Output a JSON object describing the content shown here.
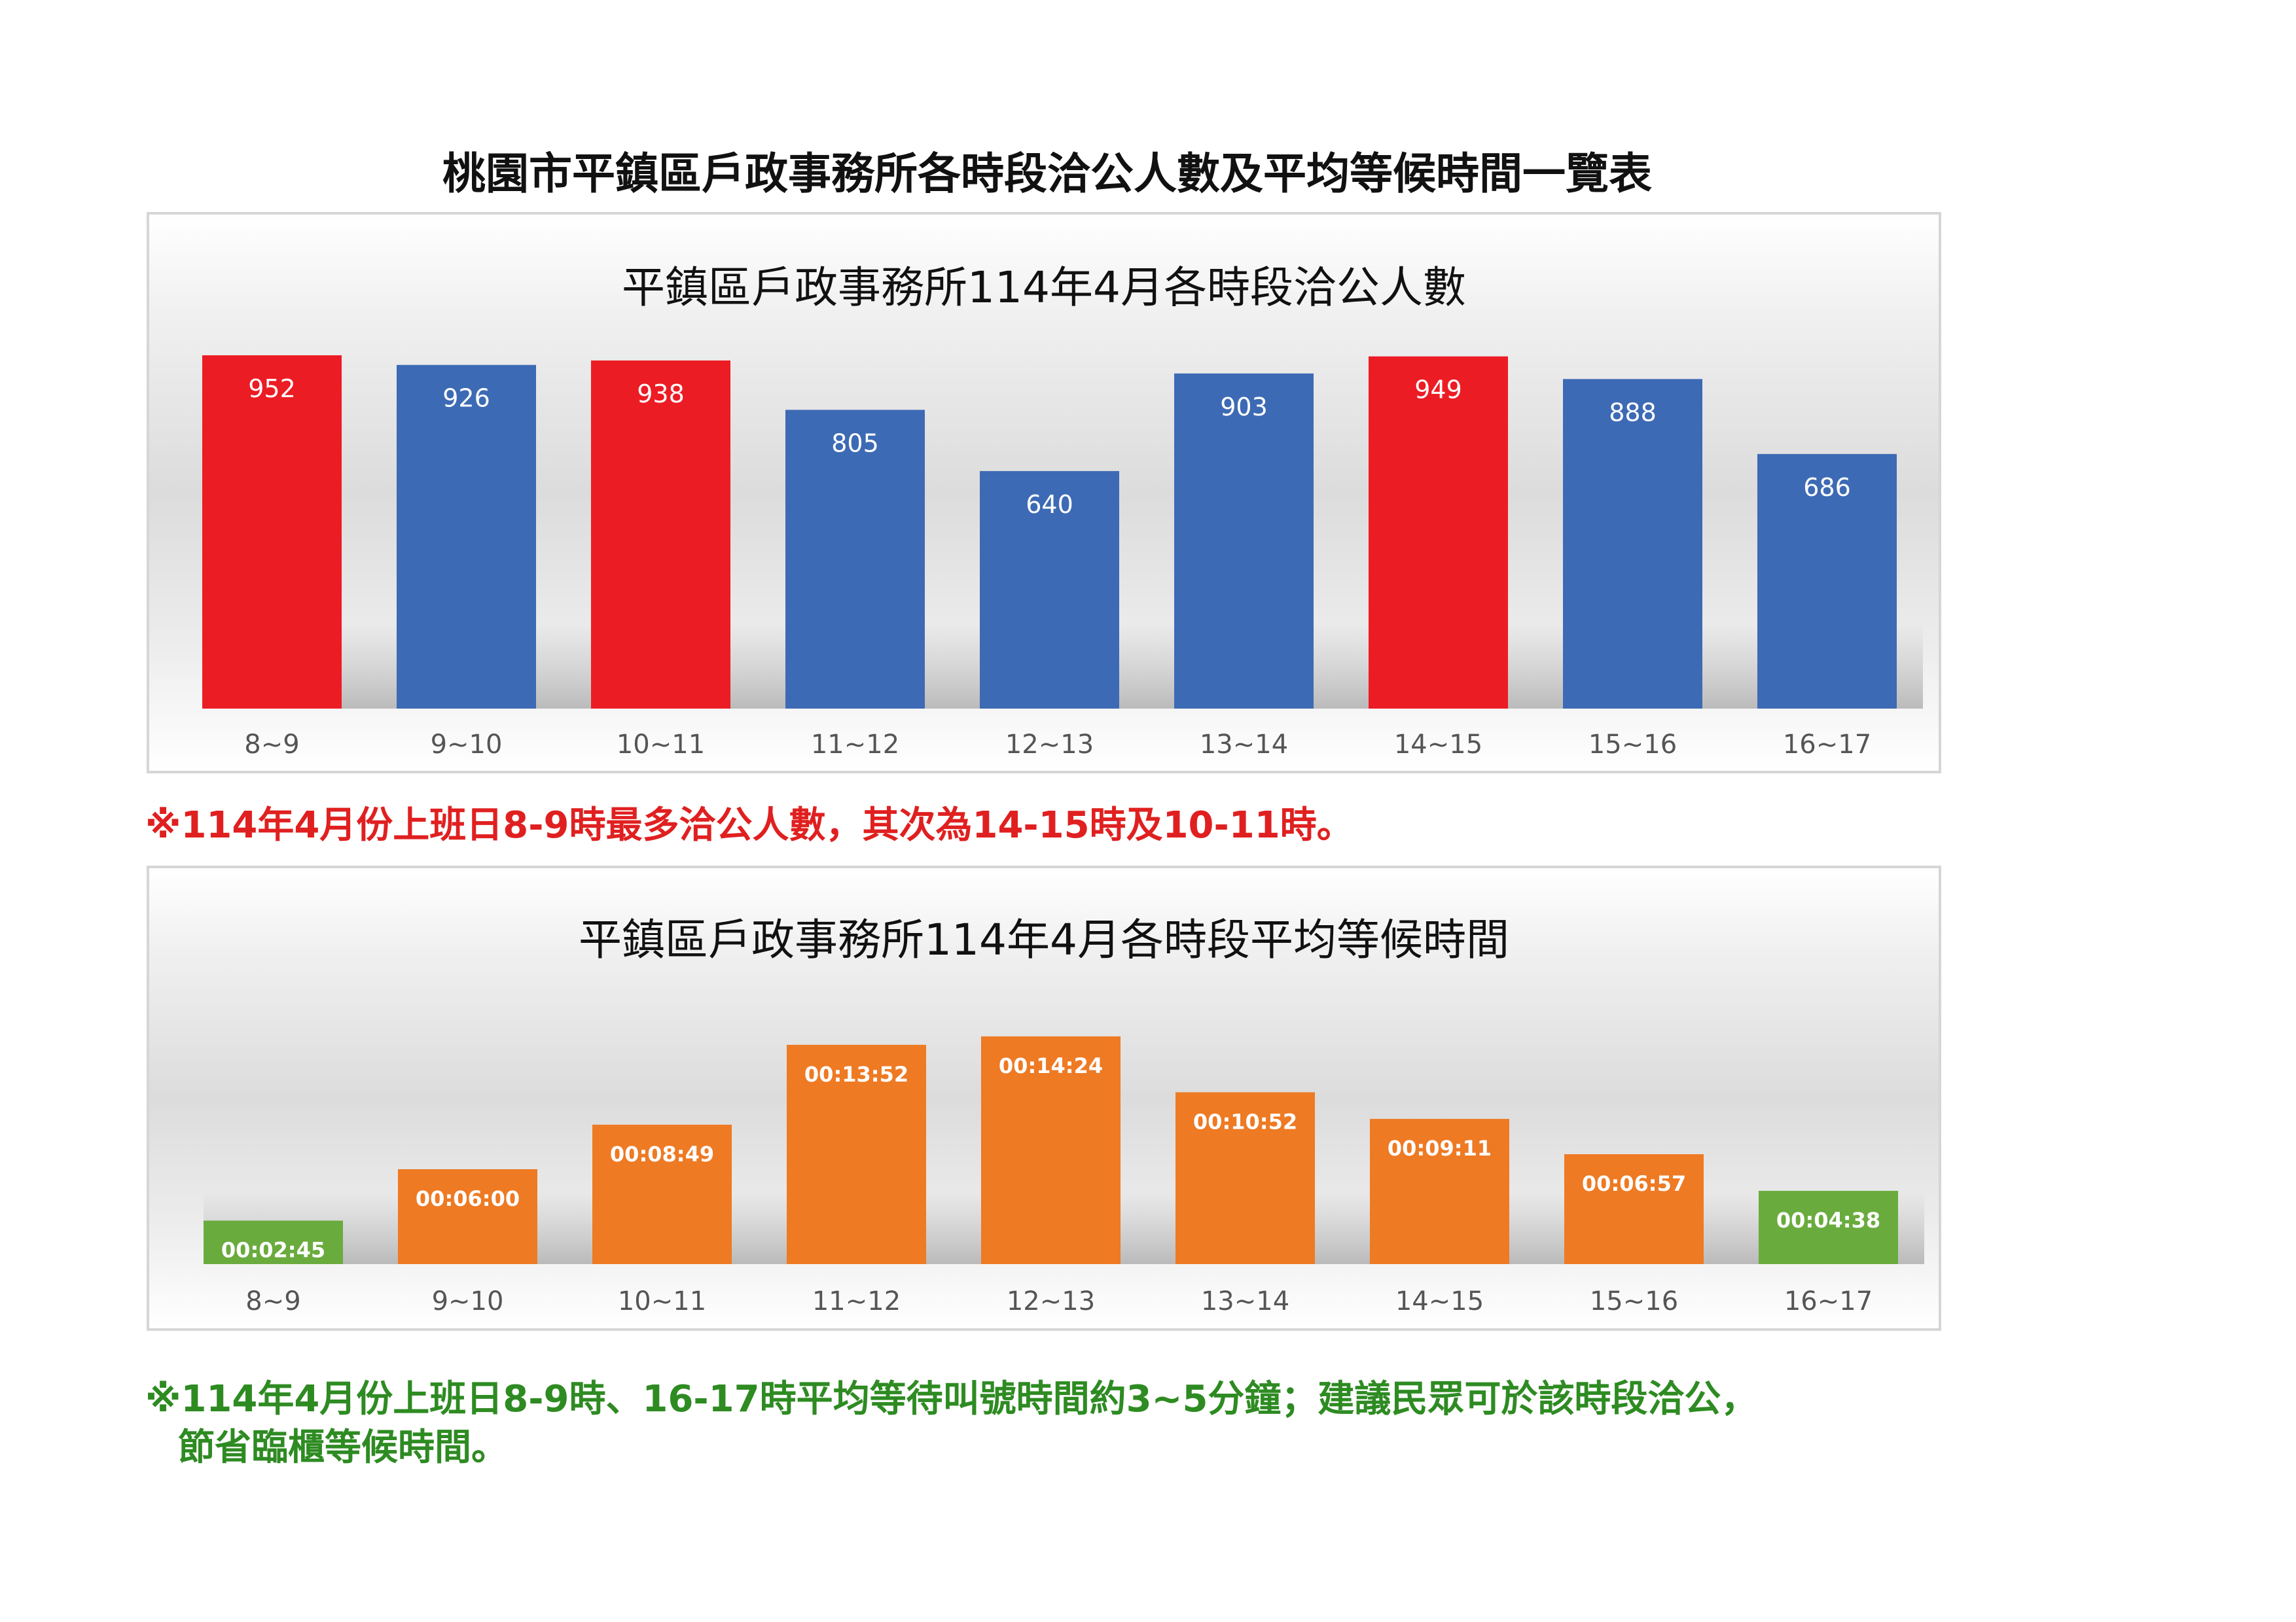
{
  "page_title": "桃園市平鎮區戶政事務所各時段洽公人數及平均等候時間一覽表",
  "colors": {
    "red": "#ec1c24",
    "blue": "#3d6ab4",
    "orange": "#ee7a23",
    "green": "#6aab3e",
    "note_red": "#e02020",
    "note_green": "#2e8b22"
  },
  "chart_data": [
    {
      "type": "bar",
      "title": "平鎮區戶政事務所114年4月各時段洽公人數",
      "categories": [
        "8~9",
        "9~10",
        "10~11",
        "11~12",
        "12~13",
        "13~14",
        "14~15",
        "15~16",
        "16~17"
      ],
      "values": [
        952,
        926,
        938,
        805,
        640,
        903,
        949,
        888,
        686
      ],
      "labels": [
        "952",
        "926",
        "938",
        "805",
        "640",
        "903",
        "949",
        "888",
        "686"
      ],
      "bar_colors": [
        "red",
        "blue",
        "red",
        "blue",
        "blue",
        "blue",
        "red",
        "blue",
        "blue"
      ],
      "ylim": [
        0,
        952
      ],
      "grid": false,
      "legend": "none"
    },
    {
      "type": "bar",
      "title": "平鎮區戶政事務所114年4月各時段平均等候時間",
      "categories": [
        "8~9",
        "9~10",
        "10~11",
        "11~12",
        "12~13",
        "13~14",
        "14~15",
        "15~16",
        "16~17"
      ],
      "values": [
        "00:02:45",
        "00:06:00",
        "00:08:49",
        "00:13:52",
        "00:14:24",
        "00:10:52",
        "00:09:11",
        "00:06:57",
        "00:04:38"
      ],
      "labels": [
        "00:02:45",
        "00:06:00",
        "00:08:49",
        "00:13:52",
        "00:14:24",
        "00:10:52",
        "00:09:11",
        "00:06:57",
        "00:04:38"
      ],
      "bar_colors": [
        "green",
        "orange",
        "orange",
        "orange",
        "orange",
        "orange",
        "orange",
        "orange",
        "green"
      ],
      "grid": false,
      "legend": "none"
    }
  ],
  "notes": {
    "red": "※114年4月份上班日8-9時最多洽公人數，其次為14-15時及10-11時。",
    "green_line1": "※114年4月份上班日8-9時、16-17時平均等待叫號時間約3~5分鐘；建議民眾可於該時段洽公，",
    "green_line2": "節省臨櫃等候時間。"
  }
}
